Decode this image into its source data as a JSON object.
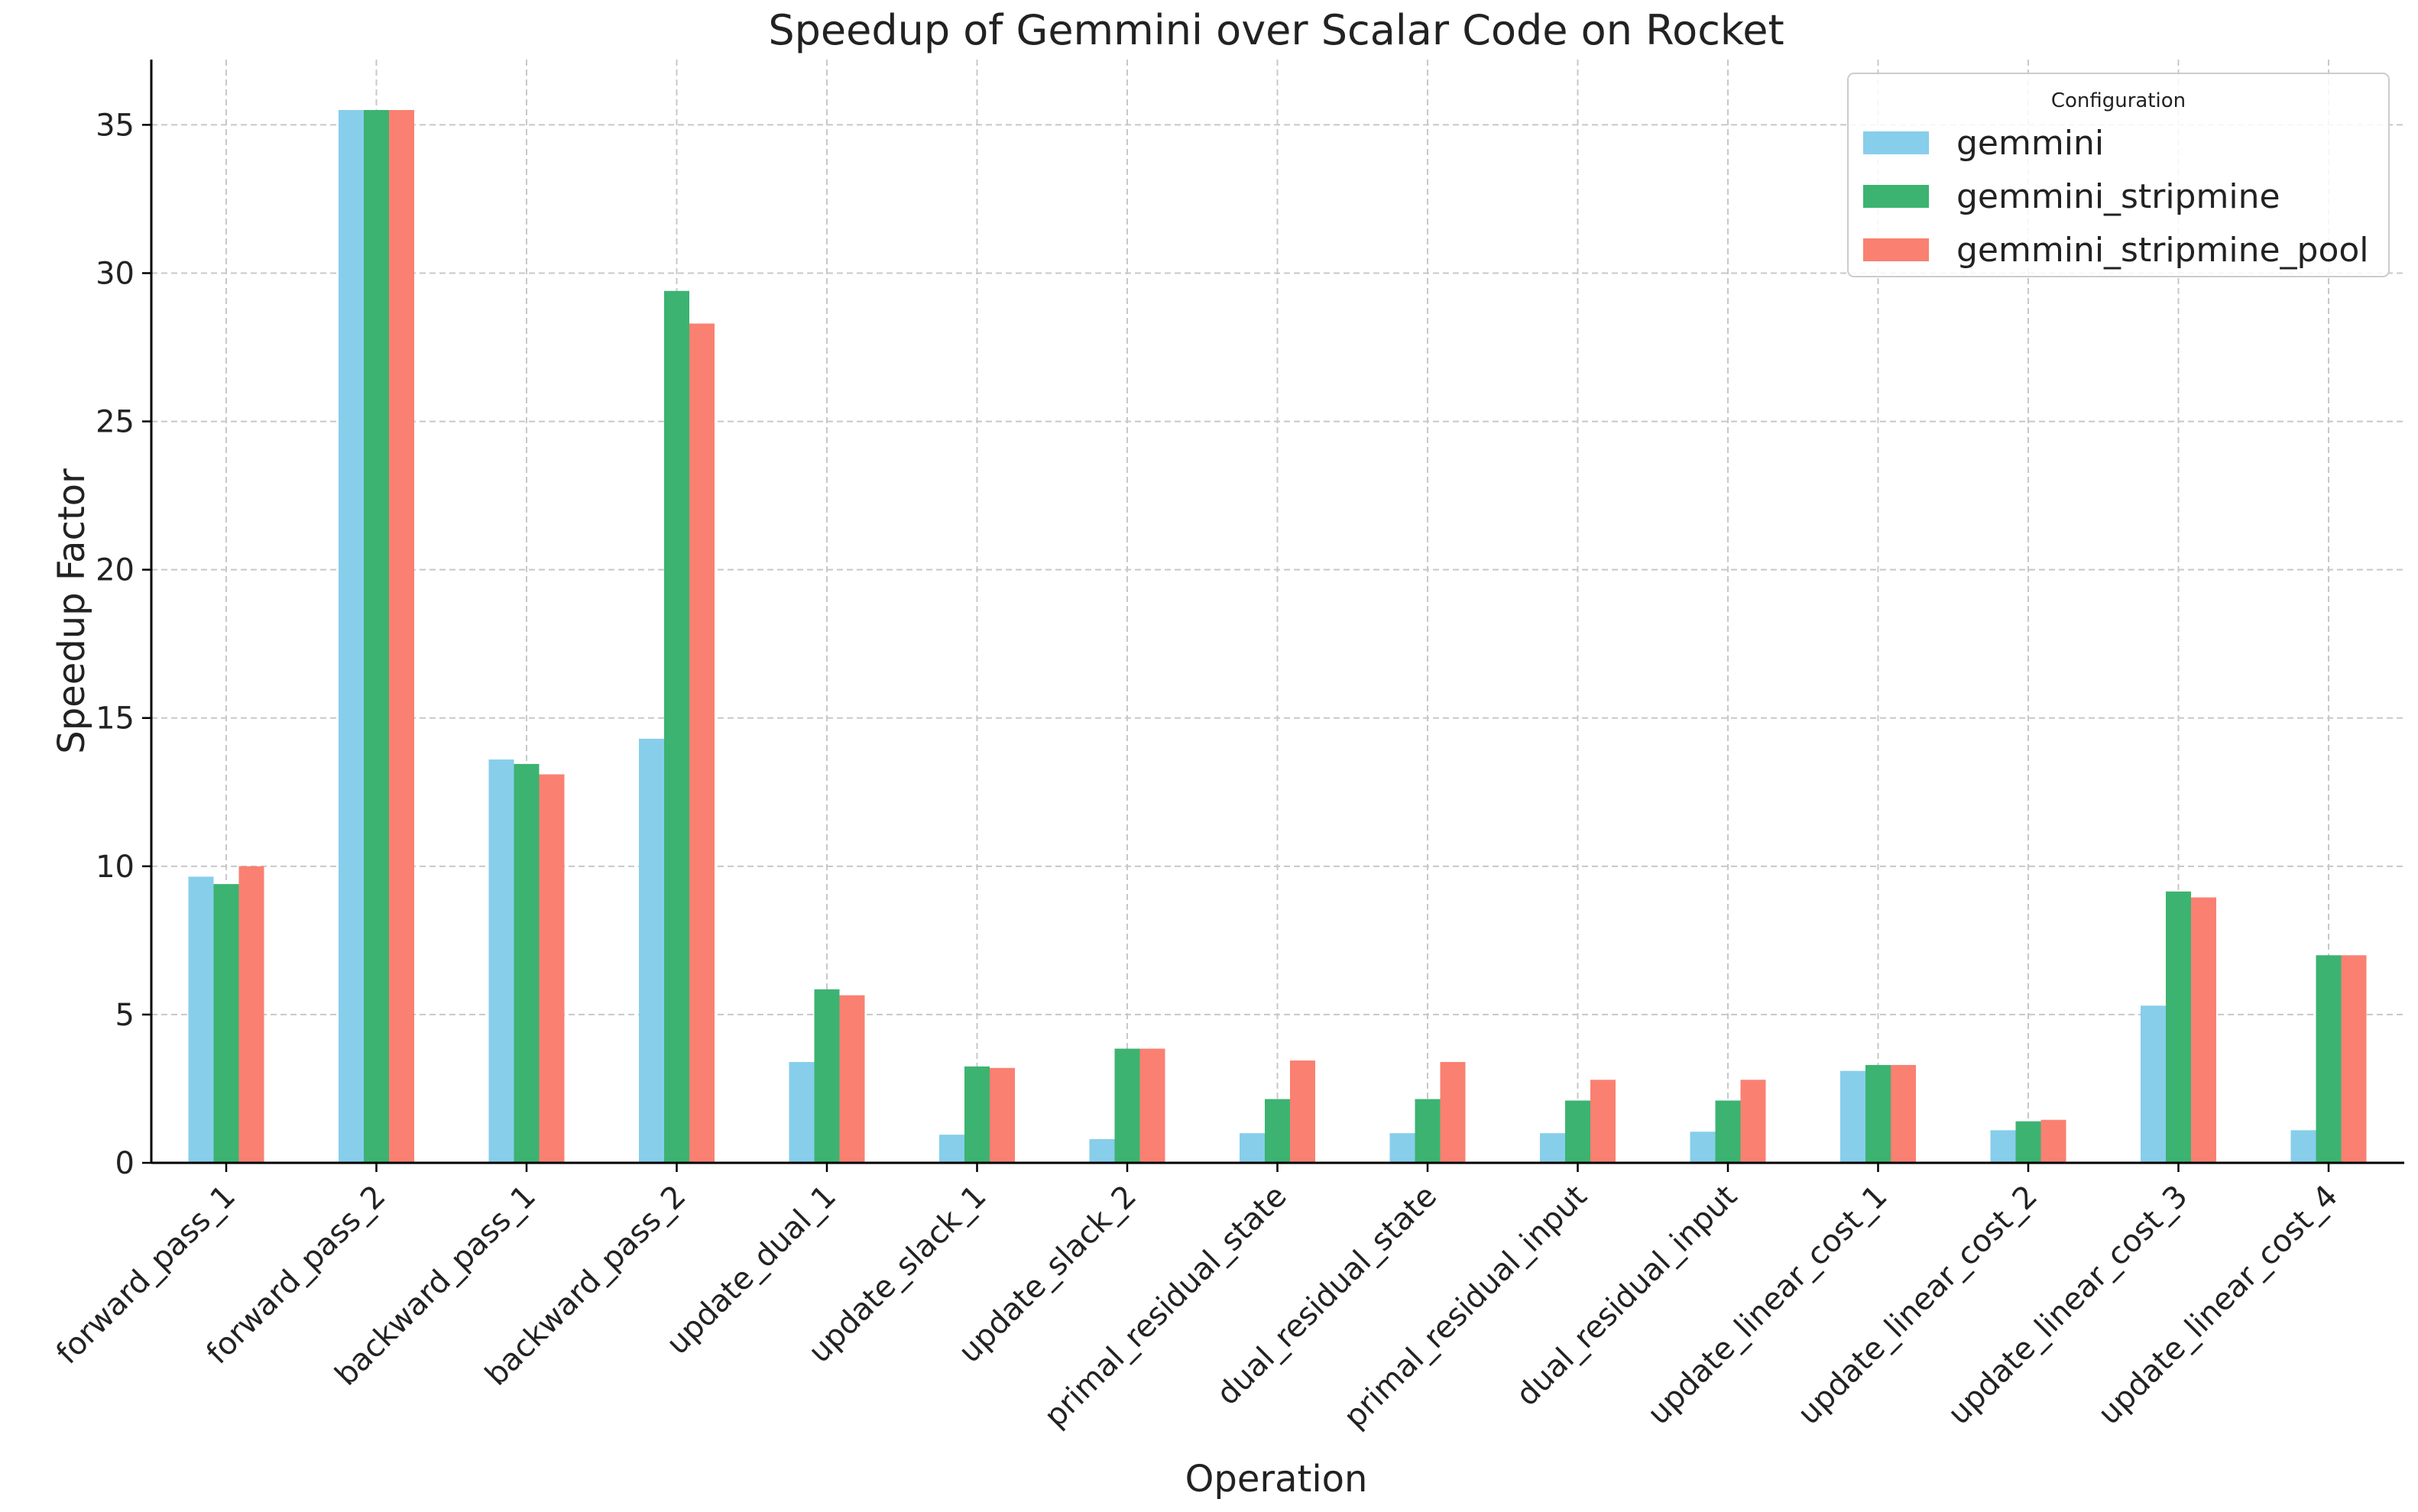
{
  "chart_data": {
    "type": "bar",
    "title": "Speedup of Gemmini over Scalar Code on Rocket",
    "xlabel": "Operation",
    "ylabel": "Speedup Factor",
    "ylim": [
      0,
      37.2
    ],
    "yticks": [
      0,
      5,
      10,
      15,
      20,
      25,
      30,
      35
    ],
    "grid": true,
    "legend": {
      "title": "Configuration",
      "position": "top-right"
    },
    "categories": [
      "forward_pass_1",
      "forward_pass_2",
      "backward_pass_1",
      "backward_pass_2",
      "update_dual_1",
      "update_slack_1",
      "update_slack_2",
      "primal_residual_state",
      "dual_residual_state",
      "primal_residual_input",
      "dual_residual_input",
      "update_linear_cost_1",
      "update_linear_cost_2",
      "update_linear_cost_3",
      "update_linear_cost_4"
    ],
    "series": [
      {
        "name": "gemmini",
        "color": "#87ceeb",
        "values": [
          9.65,
          35.5,
          13.6,
          14.3,
          3.4,
          0.95,
          0.8,
          1.0,
          1.0,
          1.0,
          1.05,
          3.1,
          1.1,
          5.3,
          1.1
        ]
      },
      {
        "name": "gemmini_stripmine",
        "color": "#3cb371",
        "values": [
          9.4,
          35.5,
          13.45,
          29.4,
          5.85,
          3.25,
          3.85,
          2.15,
          2.15,
          2.1,
          2.1,
          3.3,
          1.4,
          9.15,
          7.0
        ]
      },
      {
        "name": "gemmini_stripmine_pool",
        "color": "#fa8072",
        "values": [
          10.0,
          35.5,
          13.1,
          28.3,
          5.65,
          3.2,
          3.85,
          3.45,
          3.4,
          2.8,
          2.8,
          3.3,
          1.45,
          8.95,
          7.0
        ]
      }
    ]
  }
}
